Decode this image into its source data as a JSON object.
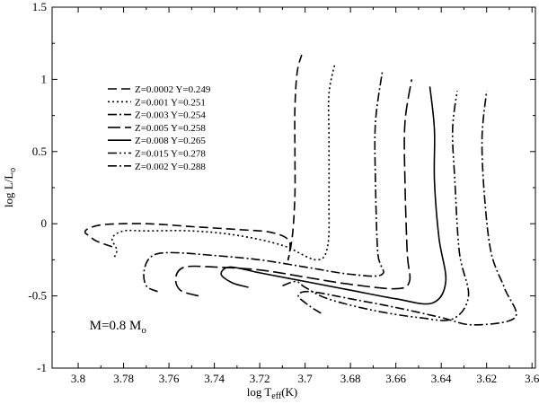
{
  "chart_data": {
    "type": "line",
    "title": "",
    "xlabel": {
      "main": "log T",
      "sub": "eff",
      "suffix": "(K)"
    },
    "ylabel": {
      "main": "log L/L",
      "sub": "o"
    },
    "xlim": [
      3.8,
      3.6
    ],
    "ylim": [
      -1,
      1.5
    ],
    "x_reversed": true,
    "grid": false,
    "legend_position": "top-left",
    "x_ticks": [
      {
        "v": 3.8,
        "label": "3.8"
      },
      {
        "v": 3.78,
        "label": "3.78"
      },
      {
        "v": 3.76,
        "label": "3.76"
      },
      {
        "v": 3.74,
        "label": "3.74"
      },
      {
        "v": 3.72,
        "label": "3.72"
      },
      {
        "v": 3.7,
        "label": "3.7"
      },
      {
        "v": 3.68,
        "label": "3.68"
      },
      {
        "v": 3.66,
        "label": "3.66"
      },
      {
        "v": 3.64,
        "label": "3.64"
      },
      {
        "v": 3.62,
        "label": "3.62"
      },
      {
        "v": 3.6,
        "label": "3.6"
      }
    ],
    "y_ticks": [
      {
        "v": -1,
        "label": "-1"
      },
      {
        "v": -0.5,
        "label": "-0.5"
      },
      {
        "v": 0,
        "label": "0"
      },
      {
        "v": 0.5,
        "label": "0.5"
      },
      {
        "v": 1,
        "label": "1"
      },
      {
        "v": 1.5,
        "label": "1.5"
      }
    ],
    "annotation": {
      "main": "M=0.8 M",
      "sub": "o",
      "x": 3.795,
      "y": -0.7
    },
    "series": [
      {
        "name": "Z=0.0002 Y=0.249",
        "dash": "10,5",
        "points": [
          [
            3.785,
            -0.16
          ],
          [
            3.792,
            -0.12
          ],
          [
            3.795,
            -0.085
          ],
          [
            3.797,
            -0.06
          ],
          [
            3.795,
            -0.03
          ],
          [
            3.788,
            -0.005
          ],
          [
            3.77,
            0.0
          ],
          [
            3.75,
            -0.02
          ],
          [
            3.73,
            -0.04
          ],
          [
            3.715,
            -0.06
          ],
          [
            3.707,
            -0.12
          ],
          [
            3.7075,
            -0.25
          ],
          [
            3.7055,
            -0.07
          ],
          [
            3.7045,
            0.2
          ],
          [
            3.7045,
            0.5
          ],
          [
            3.7045,
            0.8
          ],
          [
            3.7035,
            1.05
          ],
          [
            3.7015,
            1.17
          ]
        ]
      },
      {
        "name": "Z=0.001  Y=0.251",
        "dash": "2,3",
        "points": [
          [
            3.784,
            -0.23
          ],
          [
            3.783,
            -0.18
          ],
          [
            3.785,
            -0.1
          ],
          [
            3.78,
            -0.05
          ],
          [
            3.77,
            -0.05
          ],
          [
            3.75,
            -0.05
          ],
          [
            3.73,
            -0.08
          ],
          [
            3.71,
            -0.15
          ],
          [
            3.695,
            -0.25
          ],
          [
            3.69,
            -0.15
          ],
          [
            3.6895,
            0.2
          ],
          [
            3.6895,
            0.6
          ],
          [
            3.6895,
            0.9
          ],
          [
            3.687,
            1.1
          ]
        ]
      },
      {
        "name": "Z=0.003  Y=0.254",
        "dash": "10,3,2,3",
        "points": [
          [
            3.765,
            -0.47
          ],
          [
            3.77,
            -0.43
          ],
          [
            3.771,
            -0.33
          ],
          [
            3.768,
            -0.23
          ],
          [
            3.76,
            -0.2
          ],
          [
            3.74,
            -0.22
          ],
          [
            3.72,
            -0.25
          ],
          [
            3.7,
            -0.3
          ],
          [
            3.68,
            -0.35
          ],
          [
            3.666,
            -0.35
          ],
          [
            3.668,
            -0.2
          ],
          [
            3.669,
            0.3
          ],
          [
            3.669,
            0.7
          ],
          [
            3.666,
            1.05
          ]
        ]
      },
      {
        "name": "Z=0.005  Y=0.258",
        "dash": "14,5",
        "points": [
          [
            3.747,
            -0.5
          ],
          [
            3.755,
            -0.46
          ],
          [
            3.757,
            -0.37
          ],
          [
            3.753,
            -0.3
          ],
          [
            3.74,
            -0.3
          ],
          [
            3.72,
            -0.32
          ],
          [
            3.7,
            -0.37
          ],
          [
            3.68,
            -0.42
          ],
          [
            3.66,
            -0.45
          ],
          [
            3.654,
            -0.4
          ],
          [
            3.655,
            -0.2
          ],
          [
            3.656,
            0.3
          ],
          [
            3.656,
            0.7
          ],
          [
            3.653,
            1.0
          ]
        ]
      },
      {
        "name": "Z=0.008  Y=0.265",
        "dash": "",
        "points": [
          [
            3.725,
            -0.44
          ],
          [
            3.732,
            -0.41
          ],
          [
            3.737,
            -0.35
          ],
          [
            3.733,
            -0.3
          ],
          [
            3.72,
            -0.34
          ],
          [
            3.7,
            -0.4
          ],
          [
            3.68,
            -0.46
          ],
          [
            3.66,
            -0.52
          ],
          [
            3.644,
            -0.55
          ],
          [
            3.638,
            -0.4
          ],
          [
            3.641,
            -0.1
          ],
          [
            3.643,
            0.3
          ],
          [
            3.643,
            0.65
          ],
          [
            3.645,
            0.95
          ]
        ]
      },
      {
        "name": "Z=0.015  Y=0.278",
        "dash": "10,3,2,3,2,3",
        "points": [
          [
            3.71,
            -0.43
          ],
          [
            3.704,
            -0.4
          ],
          [
            3.7,
            -0.44
          ],
          [
            3.69,
            -0.52
          ],
          [
            3.67,
            -0.6
          ],
          [
            3.65,
            -0.65
          ],
          [
            3.635,
            -0.66
          ],
          [
            3.628,
            -0.5
          ],
          [
            3.632,
            -0.2
          ],
          [
            3.634,
            0.3
          ],
          [
            3.635,
            0.65
          ],
          [
            3.633,
            0.92
          ]
        ]
      },
      {
        "name": "Z=0.002  Y=0.288",
        "dash": "10,3,2,3",
        "points": [
          [
            3.693,
            -0.62
          ],
          [
            3.698,
            -0.57
          ],
          [
            3.703,
            -0.5
          ],
          [
            3.698,
            -0.47
          ],
          [
            3.68,
            -0.52
          ],
          [
            3.66,
            -0.58
          ],
          [
            3.64,
            -0.65
          ],
          [
            3.626,
            -0.7
          ],
          [
            3.6075,
            -0.65
          ],
          [
            3.612,
            -0.45
          ],
          [
            3.618,
            -0.2
          ],
          [
            3.621,
            0.2
          ],
          [
            3.622,
            0.6
          ],
          [
            3.62,
            0.92
          ]
        ]
      }
    ]
  }
}
